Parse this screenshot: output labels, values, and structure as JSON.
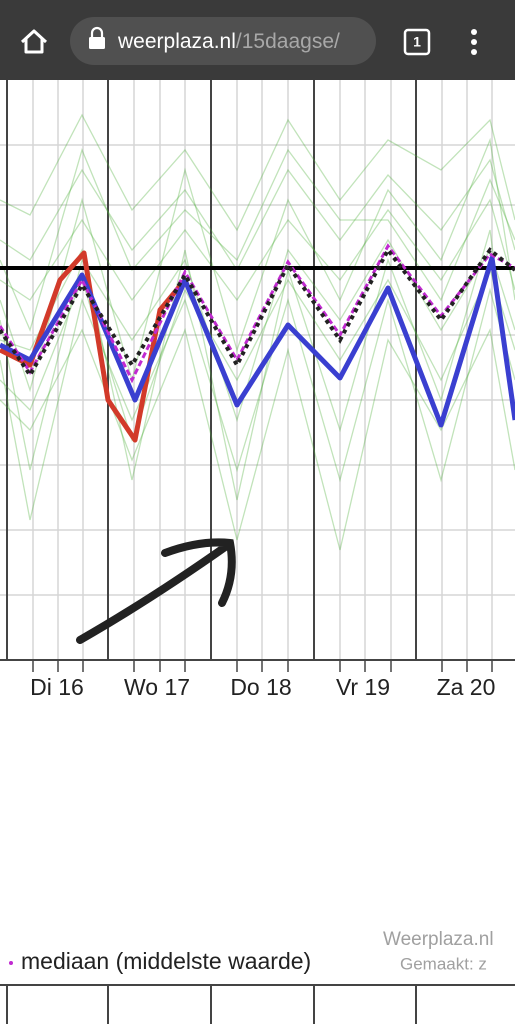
{
  "browser": {
    "url_domain": "weerplaza.nl",
    "url_path": "/15daagse/",
    "tab_count": "1"
  },
  "chart": {
    "day_labels": [
      "Di 16",
      "Wo 17",
      "Do 18",
      "Vr 19",
      "Za 20"
    ]
  },
  "legend": {
    "label": "mediaan (middelste waarde)"
  },
  "watermark": {
    "site": "Weerplaza.nl",
    "created": "Gemaakt: z"
  }
}
